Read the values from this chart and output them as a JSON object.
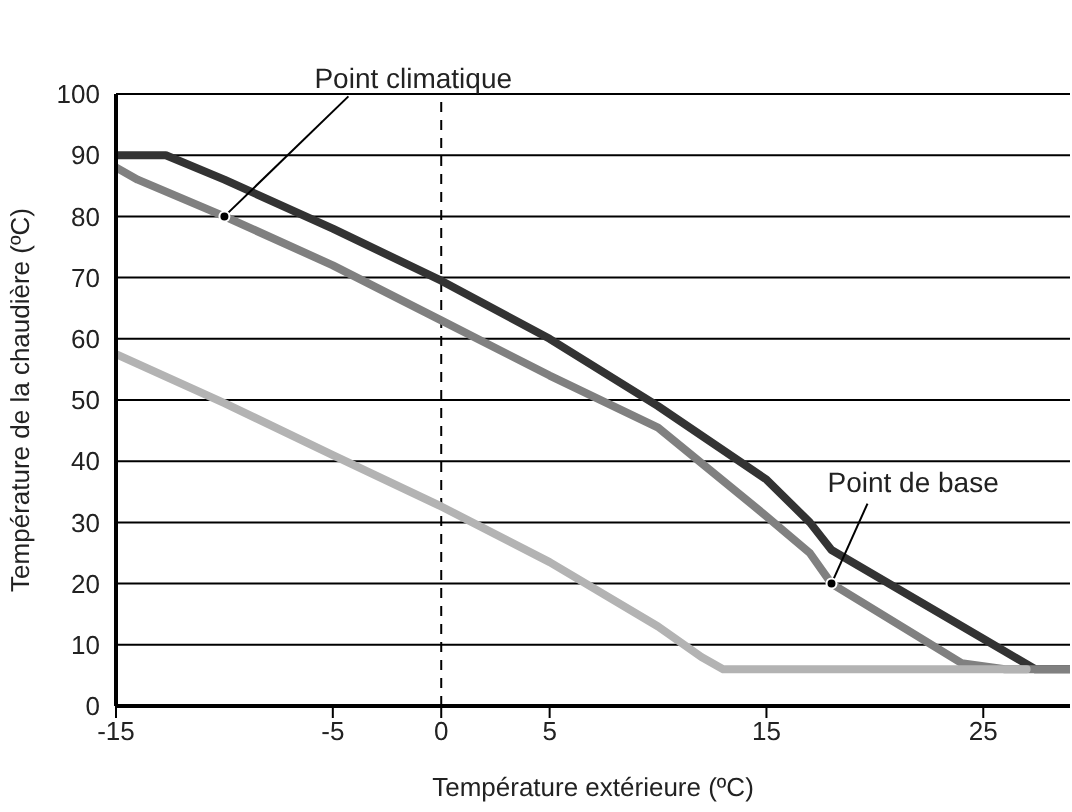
{
  "chart_data": {
    "type": "line",
    "xlabel": "Température extérieure (ºC)",
    "ylabel": "Température de la chaudière (ºC)",
    "xlim": [
      -15,
      29
    ],
    "xticks": [
      -15,
      -5,
      0,
      5,
      15,
      25
    ],
    "ylim": [
      0,
      100
    ],
    "yticks": [
      0,
      10,
      20,
      30,
      40,
      50,
      60,
      70,
      80,
      90,
      100
    ],
    "grid": "y",
    "marker": "none",
    "line_style": "solid",
    "ref_lines": [
      {
        "axis": "x",
        "value": 0,
        "line_style": "dashed",
        "color": "#000000"
      }
    ],
    "annotations": [
      {
        "text": "Point climatique",
        "x": -10,
        "y": 80
      },
      {
        "text": "Point de base",
        "x": 18,
        "y": 20
      }
    ],
    "series": [
      {
        "color": "#333333",
        "x": [
          -15,
          -12.7,
          -10,
          -5,
          0,
          5,
          10,
          15,
          17,
          18,
          25,
          27.4,
          29
        ],
        "values": [
          90,
          90,
          86,
          78,
          69.5,
          60,
          49,
          37,
          30,
          25.5,
          11,
          6,
          6
        ]
      },
      {
        "color": "#808080",
        "x": [
          -15,
          -14,
          -10,
          -5,
          0,
          5,
          10,
          15,
          17,
          18,
          24,
          26,
          29
        ],
        "values": [
          88,
          86,
          80,
          72,
          63,
          54,
          45.5,
          31,
          25,
          20,
          7,
          6,
          6
        ]
      },
      {
        "color": "#b3b3b3",
        "x": [
          -15,
          -10,
          -5,
          0,
          5,
          10,
          12,
          13,
          27
        ],
        "values": [
          57.5,
          49.5,
          41,
          32.6,
          23.5,
          13,
          8,
          6,
          6
        ]
      }
    ]
  }
}
